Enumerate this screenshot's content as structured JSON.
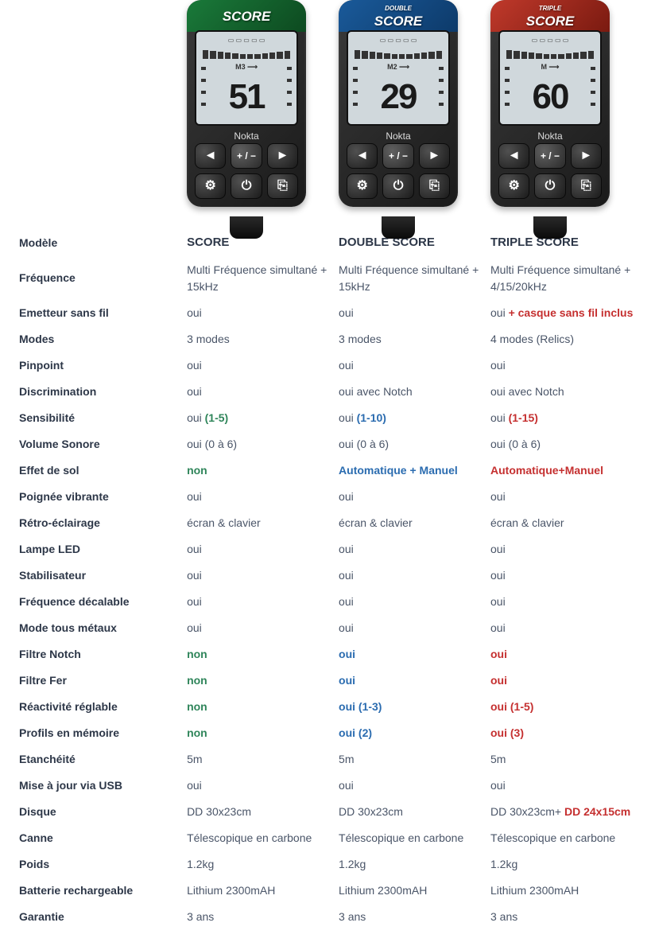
{
  "products": [
    {
      "key": "score",
      "name": "SCORE",
      "accent": "acc-green",
      "logo_small": "",
      "logo": "SCORE",
      "screen_mid": "M3",
      "screen_num": "51"
    },
    {
      "key": "double",
      "name": "DOUBLE SCORE",
      "accent": "acc-blue",
      "logo_small": "DOUBLE",
      "logo": "SCORE",
      "screen_mid": "M2",
      "screen_num": "29"
    },
    {
      "key": "triple",
      "name": "TRIPLE SCORE",
      "accent": "acc-red",
      "logo_small": "TRIPLE",
      "logo": "SCORE",
      "screen_mid": "M",
      "screen_num": "60"
    }
  ],
  "brand": "Nokta",
  "colors": {
    "green": "#2f855a",
    "blue": "#2b6cb0",
    "red": "#c53030",
    "text": "#4a5568",
    "label": "#2d3748",
    "bg": "#ffffff"
  },
  "rows": [
    {
      "label": "Modèle",
      "v": [
        {
          "type": "bold",
          "text": "SCORE"
        },
        {
          "type": "bold",
          "text": "DOUBLE SCORE"
        },
        {
          "type": "bold",
          "text": "TRIPLE SCORE"
        }
      ]
    },
    {
      "label": "Fréquence",
      "v": [
        {
          "type": "plain",
          "text": "Multi Fréquence simultané + 15kHz"
        },
        {
          "type": "plain",
          "text": "Multi Fréquence simultané + 15kHz"
        },
        {
          "type": "plain",
          "text": "Multi Fréquence simultané + 4/15/20kHz"
        }
      ]
    },
    {
      "label": "Emetteur sans fil",
      "v": [
        {
          "type": "plain",
          "text": "oui"
        },
        {
          "type": "plain",
          "text": "oui"
        },
        {
          "type": "mixed",
          "parts": [
            {
              "t": "oui ",
              "c": ""
            },
            {
              "t": "+ casque sans fil inclus",
              "c": "c-red"
            }
          ]
        }
      ]
    },
    {
      "label": "Modes",
      "v": [
        {
          "type": "plain",
          "text": "3 modes"
        },
        {
          "type": "plain",
          "text": "3 modes"
        },
        {
          "type": "plain",
          "text": "4 modes (Relics)"
        }
      ]
    },
    {
      "label": "Pinpoint",
      "v": [
        {
          "type": "plain",
          "text": "oui"
        },
        {
          "type": "plain",
          "text": "oui"
        },
        {
          "type": "plain",
          "text": "oui"
        }
      ]
    },
    {
      "label": "Discrimination",
      "v": [
        {
          "type": "plain",
          "text": "oui"
        },
        {
          "type": "plain",
          "text": "oui avec Notch"
        },
        {
          "type": "plain",
          "text": "oui avec Notch"
        }
      ]
    },
    {
      "label": "Sensibilité",
      "v": [
        {
          "type": "mixed",
          "parts": [
            {
              "t": "oui ",
              "c": ""
            },
            {
              "t": "(1-5)",
              "c": "c-green"
            }
          ]
        },
        {
          "type": "mixed",
          "parts": [
            {
              "t": "oui ",
              "c": ""
            },
            {
              "t": "(1-10)",
              "c": "c-blue"
            }
          ]
        },
        {
          "type": "mixed",
          "parts": [
            {
              "t": "oui ",
              "c": ""
            },
            {
              "t": "(1-15)",
              "c": "c-red"
            }
          ]
        }
      ]
    },
    {
      "label": "Volume Sonore",
      "v": [
        {
          "type": "plain",
          "text": "oui (0 à 6)"
        },
        {
          "type": "plain",
          "text": "oui (0 à 6)"
        },
        {
          "type": "plain",
          "text": "oui (0 à 6)"
        }
      ]
    },
    {
      "label": "Effet de sol",
      "v": [
        {
          "type": "color",
          "text": "non",
          "c": "c-green"
        },
        {
          "type": "color",
          "text": "Automatique + Manuel",
          "c": "c-blue"
        },
        {
          "type": "color",
          "text": "Automatique+Manuel",
          "c": "c-red"
        }
      ]
    },
    {
      "label": "Poignée vibrante",
      "v": [
        {
          "type": "plain",
          "text": "oui"
        },
        {
          "type": "plain",
          "text": "oui"
        },
        {
          "type": "plain",
          "text": "oui"
        }
      ]
    },
    {
      "label": "Rétro-éclairage",
      "v": [
        {
          "type": "plain",
          "text": "écran & clavier"
        },
        {
          "type": "plain",
          "text": "écran & clavier"
        },
        {
          "type": "plain",
          "text": "écran & clavier"
        }
      ]
    },
    {
      "label": "Lampe LED",
      "v": [
        {
          "type": "plain",
          "text": "oui"
        },
        {
          "type": "plain",
          "text": "oui"
        },
        {
          "type": "plain",
          "text": "oui"
        }
      ]
    },
    {
      "label": "Stabilisateur",
      "v": [
        {
          "type": "plain",
          "text": "oui"
        },
        {
          "type": "plain",
          "text": "oui"
        },
        {
          "type": "plain",
          "text": "oui"
        }
      ]
    },
    {
      "label": "Fréquence décalable",
      "v": [
        {
          "type": "plain",
          "text": "oui"
        },
        {
          "type": "plain",
          "text": "oui"
        },
        {
          "type": "plain",
          "text": "oui"
        }
      ]
    },
    {
      "label": "Mode tous métaux",
      "v": [
        {
          "type": "plain",
          "text": "oui"
        },
        {
          "type": "plain",
          "text": "oui"
        },
        {
          "type": "plain",
          "text": "oui"
        }
      ]
    },
    {
      "label": "Filtre Notch",
      "v": [
        {
          "type": "color",
          "text": "non",
          "c": "c-green"
        },
        {
          "type": "color",
          "text": "oui",
          "c": "c-blue"
        },
        {
          "type": "color",
          "text": "oui",
          "c": "c-red"
        }
      ]
    },
    {
      "label": "Filtre Fer",
      "v": [
        {
          "type": "color",
          "text": "non",
          "c": "c-green"
        },
        {
          "type": "color",
          "text": "oui",
          "c": "c-blue"
        },
        {
          "type": "color",
          "text": "oui",
          "c": "c-red"
        }
      ]
    },
    {
      "label": "Réactivité réglable",
      "v": [
        {
          "type": "color",
          "text": "non",
          "c": "c-green"
        },
        {
          "type": "color",
          "text": "oui (1-3)",
          "c": "c-blue"
        },
        {
          "type": "color",
          "text": "oui (1-5)",
          "c": "c-red"
        }
      ]
    },
    {
      "label": "Profils en mémoire",
      "v": [
        {
          "type": "color",
          "text": "non",
          "c": "c-green"
        },
        {
          "type": "color",
          "text": "oui (2)",
          "c": "c-blue"
        },
        {
          "type": "color",
          "text": "oui (3)",
          "c": "c-red"
        }
      ]
    },
    {
      "label": "Etanchéité",
      "v": [
        {
          "type": "plain",
          "text": "5m"
        },
        {
          "type": "plain",
          "text": "5m"
        },
        {
          "type": "plain",
          "text": "5m"
        }
      ]
    },
    {
      "label": "Mise à jour via USB",
      "v": [
        {
          "type": "plain",
          "text": "oui"
        },
        {
          "type": "plain",
          "text": "oui"
        },
        {
          "type": "plain",
          "text": "oui"
        }
      ]
    },
    {
      "label": "Disque",
      "v": [
        {
          "type": "plain",
          "text": "DD 30x23cm"
        },
        {
          "type": "plain",
          "text": "DD 30x23cm"
        },
        {
          "type": "mixed",
          "parts": [
            {
              "t": "DD 30x23cm+ ",
              "c": ""
            },
            {
              "t": "DD 24x15cm",
              "c": "c-red"
            }
          ]
        }
      ]
    },
    {
      "label": "Canne",
      "v": [
        {
          "type": "plain",
          "text": "Télescopique en carbone"
        },
        {
          "type": "plain",
          "text": "Télescopique en carbone"
        },
        {
          "type": "plain",
          "text": "Télescopique en carbone"
        }
      ]
    },
    {
      "label": "Poids",
      "v": [
        {
          "type": "plain",
          "text": "1.2kg"
        },
        {
          "type": "plain",
          "text": "1.2kg"
        },
        {
          "type": "plain",
          "text": "1.2kg"
        }
      ]
    },
    {
      "label": "Batterie rechargeable",
      "v": [
        {
          "type": "plain",
          "text": "Lithium 2300mAH"
        },
        {
          "type": "plain",
          "text": "Lithium 2300mAH"
        },
        {
          "type": "plain",
          "text": "Lithium 2300mAH"
        }
      ]
    },
    {
      "label": "Garantie",
      "v": [
        {
          "type": "plain",
          "text": "3 ans"
        },
        {
          "type": "plain",
          "text": "3 ans"
        },
        {
          "type": "plain",
          "text": "3 ans"
        }
      ]
    }
  ],
  "keypad": [
    "◄",
    "+ / −",
    "►",
    "⚙",
    "⏻",
    "⎘"
  ]
}
